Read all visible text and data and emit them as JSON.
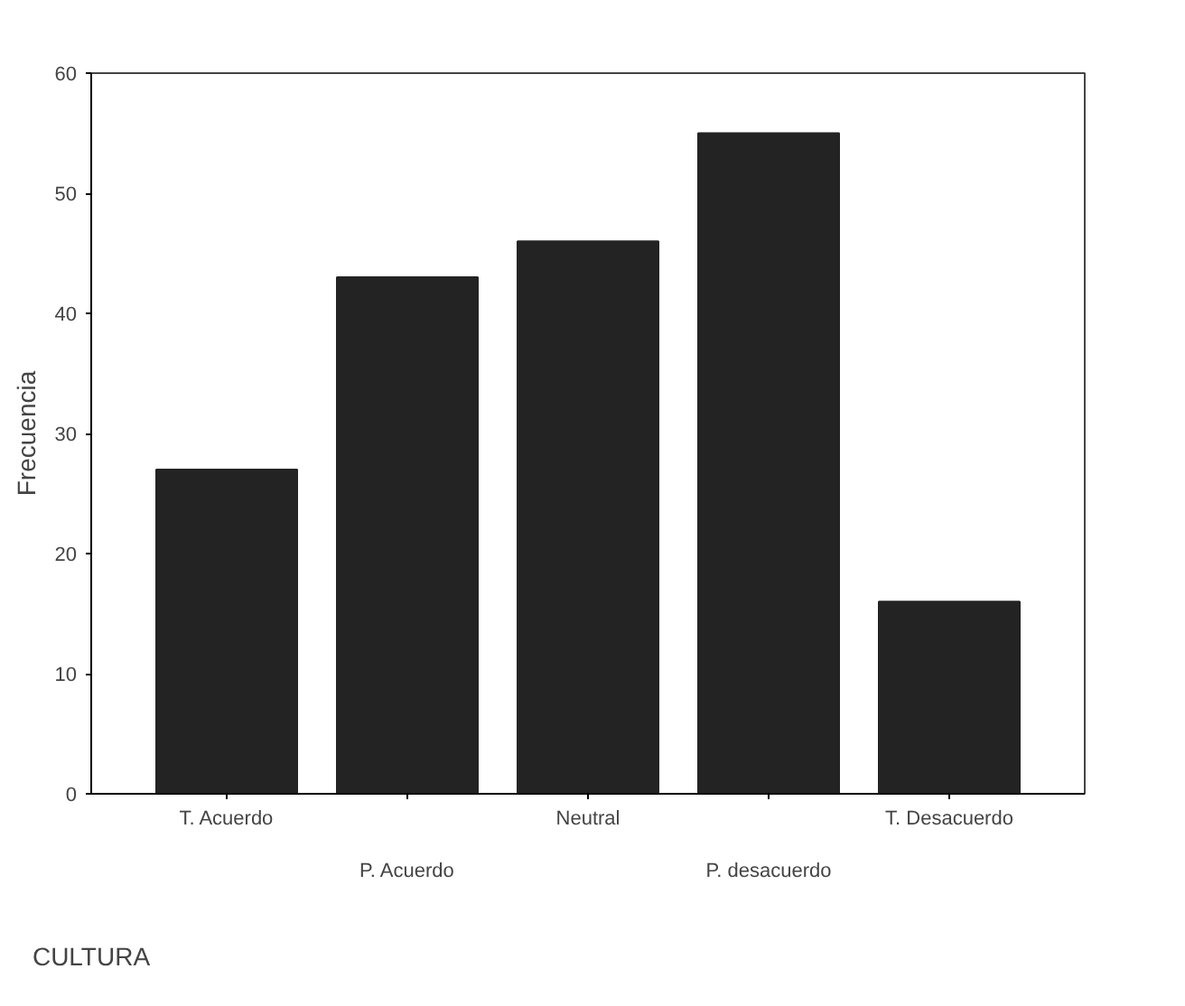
{
  "chart_data": {
    "type": "bar",
    "xlabel": "CULTURA",
    "ylabel": "Frecuencia",
    "categories": [
      "T. Acuerdo",
      "P. Acuerdo",
      "Neutral",
      "P. desacuerdo",
      "T. Desacuerdo"
    ],
    "values": [
      27,
      43,
      46,
      55,
      16
    ],
    "color": "#232323",
    "ylim": [
      0,
      60
    ],
    "yticks": [
      0,
      10,
      20,
      30,
      40,
      50,
      60
    ],
    "grid": false
  }
}
